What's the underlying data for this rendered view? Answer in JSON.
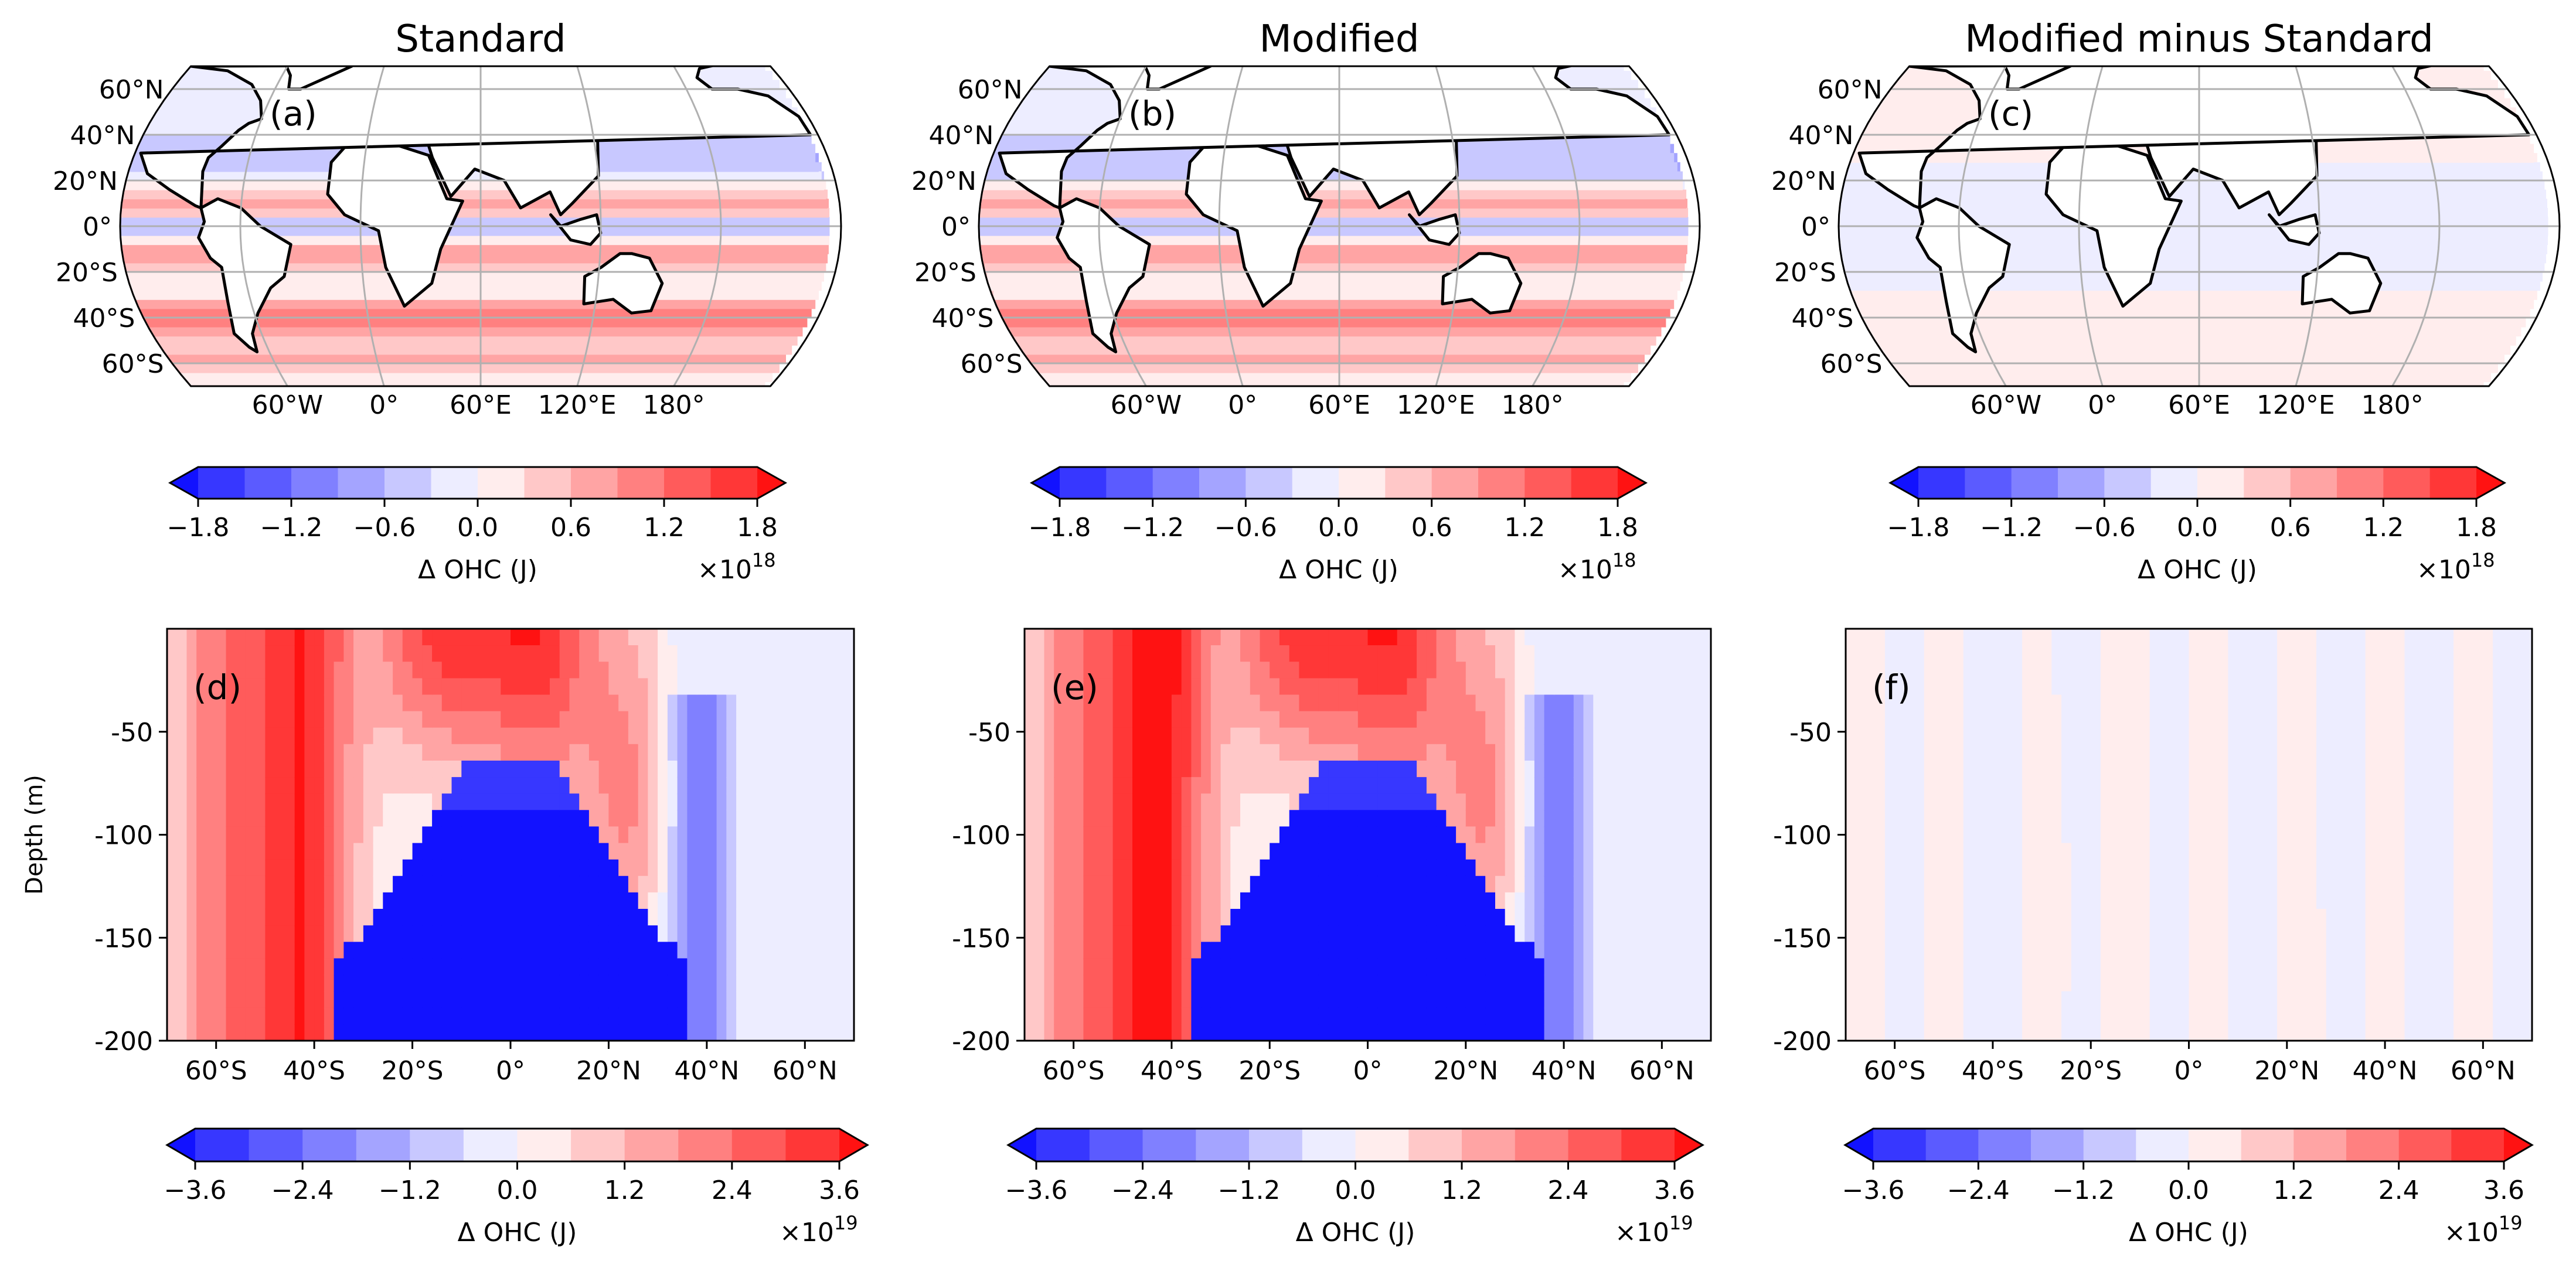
{
  "chart_data": [
    {
      "panel": "a",
      "type": "heatmap",
      "kind": "map",
      "column_title": "Standard",
      "label": "(a)",
      "lat_ticks": [
        "60°N",
        "40°N",
        "20°N",
        "0°",
        "20°S",
        "40°S",
        "60°S"
      ],
      "lon_ticks": [
        "0°",
        "60°E",
        "120°E",
        "180°",
        "60°W"
      ],
      "pattern": "standard"
    },
    {
      "panel": "b",
      "type": "heatmap",
      "kind": "map",
      "column_title": "Modified",
      "label": "(b)",
      "lat_ticks": [
        "60°N",
        "40°N",
        "20°N",
        "0°",
        "20°S",
        "40°S",
        "60°S"
      ],
      "lon_ticks": [
        "0°",
        "60°E",
        "120°E",
        "180°",
        "60°W"
      ],
      "pattern": "modified"
    },
    {
      "panel": "c",
      "type": "heatmap",
      "kind": "map",
      "column_title": "Modified minus Standard",
      "label": "(c)",
      "lat_ticks": [
        "60°N",
        "40°N",
        "20°N",
        "0°",
        "20°S",
        "40°S",
        "60°S"
      ],
      "lon_ticks": [
        "0°",
        "60°E",
        "120°E",
        "180°",
        "60°W"
      ],
      "pattern": "difference"
    },
    {
      "panel": "d",
      "type": "heatmap",
      "kind": "section",
      "label": "(d)",
      "ylabel": "Depth (m)",
      "y_ticks": [
        "-50",
        "-100",
        "-150",
        "-200"
      ],
      "y_values": [
        -50,
        -100,
        -150,
        -200
      ],
      "ylim": [
        -200,
        0
      ],
      "x_ticks": [
        "60°S",
        "40°S",
        "20°S",
        "0°",
        "20°N",
        "40°N",
        "60°N"
      ],
      "x_values": [
        -60,
        -40,
        -20,
        0,
        20,
        40,
        60
      ],
      "xlim": [
        -70,
        70
      ],
      "pattern": "standard"
    },
    {
      "panel": "e",
      "type": "heatmap",
      "kind": "section",
      "label": "(e)",
      "y_ticks": [
        "-50",
        "-100",
        "-150",
        "-200"
      ],
      "y_values": [
        -50,
        -100,
        -150,
        -200
      ],
      "ylim": [
        -200,
        0
      ],
      "x_ticks": [
        "60°S",
        "40°S",
        "20°S",
        "0°",
        "20°N",
        "40°N",
        "60°N"
      ],
      "x_values": [
        -60,
        -40,
        -20,
        0,
        20,
        40,
        60
      ],
      "xlim": [
        -70,
        70
      ],
      "pattern": "modified"
    },
    {
      "panel": "f",
      "type": "heatmap",
      "kind": "section",
      "label": "(f)",
      "y_ticks": [
        "-50",
        "-100",
        "-150",
        "-200"
      ],
      "y_values": [
        -50,
        -100,
        -150,
        -200
      ],
      "ylim": [
        -200,
        0
      ],
      "x_ticks": [
        "60°S",
        "40°S",
        "20°S",
        "0°",
        "20°N",
        "40°N",
        "60°N"
      ],
      "x_values": [
        -60,
        -40,
        -20,
        0,
        20,
        40,
        60
      ],
      "xlim": [
        -70,
        70
      ],
      "pattern": "difference"
    }
  ],
  "colorbars": {
    "top": {
      "label": "Δ OHC (J)",
      "multiplier": "×10",
      "exponent": "18",
      "ticks": [
        "−1.8",
        "−1.2",
        "−0.6",
        "0.0",
        "0.6",
        "1.2",
        "1.8"
      ],
      "tick_values": [
        -1.8,
        -1.2,
        -0.6,
        0.0,
        0.6,
        1.2,
        1.8
      ],
      "range": [
        -1.8,
        1.8
      ],
      "levels": 14
    },
    "bottom": {
      "label": "Δ OHC (J)",
      "multiplier": "×10",
      "exponent": "19",
      "ticks": [
        "−3.6",
        "−2.4",
        "−1.2",
        "0.0",
        "1.2",
        "2.4",
        "3.6"
      ],
      "tick_values": [
        -3.6,
        -2.4,
        -1.2,
        0.0,
        1.2,
        2.4,
        3.6
      ],
      "range": [
        -3.6,
        3.6
      ],
      "levels": 14
    }
  },
  "colors": {
    "negative": "#0000ff",
    "neutral": "#ffffff",
    "positive": "#ff0000",
    "land": "#ffffff",
    "coast": "#000000",
    "grid": "#b0b0b0"
  }
}
